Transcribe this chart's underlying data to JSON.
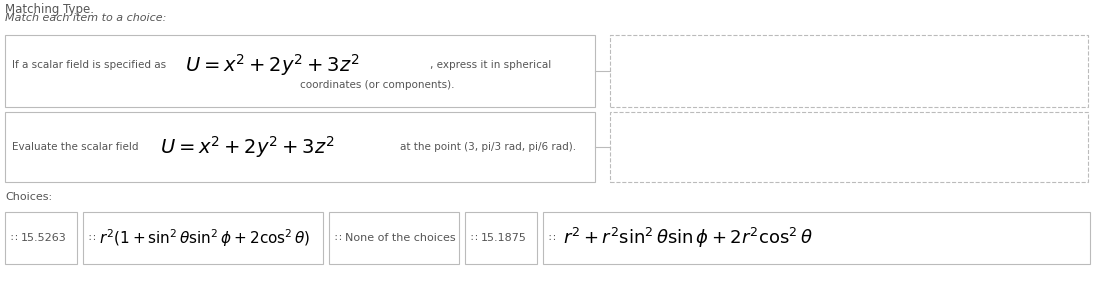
{
  "title": "Matching Type.",
  "subtitle": "Match each item to a choice:",
  "bg_color": "#ffffff",
  "text_color": "#555555",
  "box_edge_color": "#bbbbbb",
  "dashed_edge_color": "#bbbbbb",
  "item1_left_text": "If a scalar field is specified as",
  "item1_formula": "$U = x^2 + 2y^2 + 3z^2$",
  "item1_right_text1": ", express it in spherical",
  "item1_right_text2": "coordinates (or components).",
  "item2_left_text": "Evaluate the scalar field",
  "item2_formula": "$U = x^2 + 2y^2 + 3z^2$",
  "item2_right_text": "at the point (3, pi/3 rad, pi/6 rad).",
  "choices_label": "Choices:",
  "choice1_text": "15.5263",
  "choice2_formula": "$r^2(1 + \\sin^2\\theta\\sin^2\\phi + 2\\cos^2\\theta)$",
  "choice3_text": "None of the choices",
  "choice4_text": "15.1875",
  "choice5_formula": "$r^2 + r^2\\sin^2\\theta\\sin\\phi + 2r^2\\cos^2\\theta$",
  "symbol": "∷"
}
